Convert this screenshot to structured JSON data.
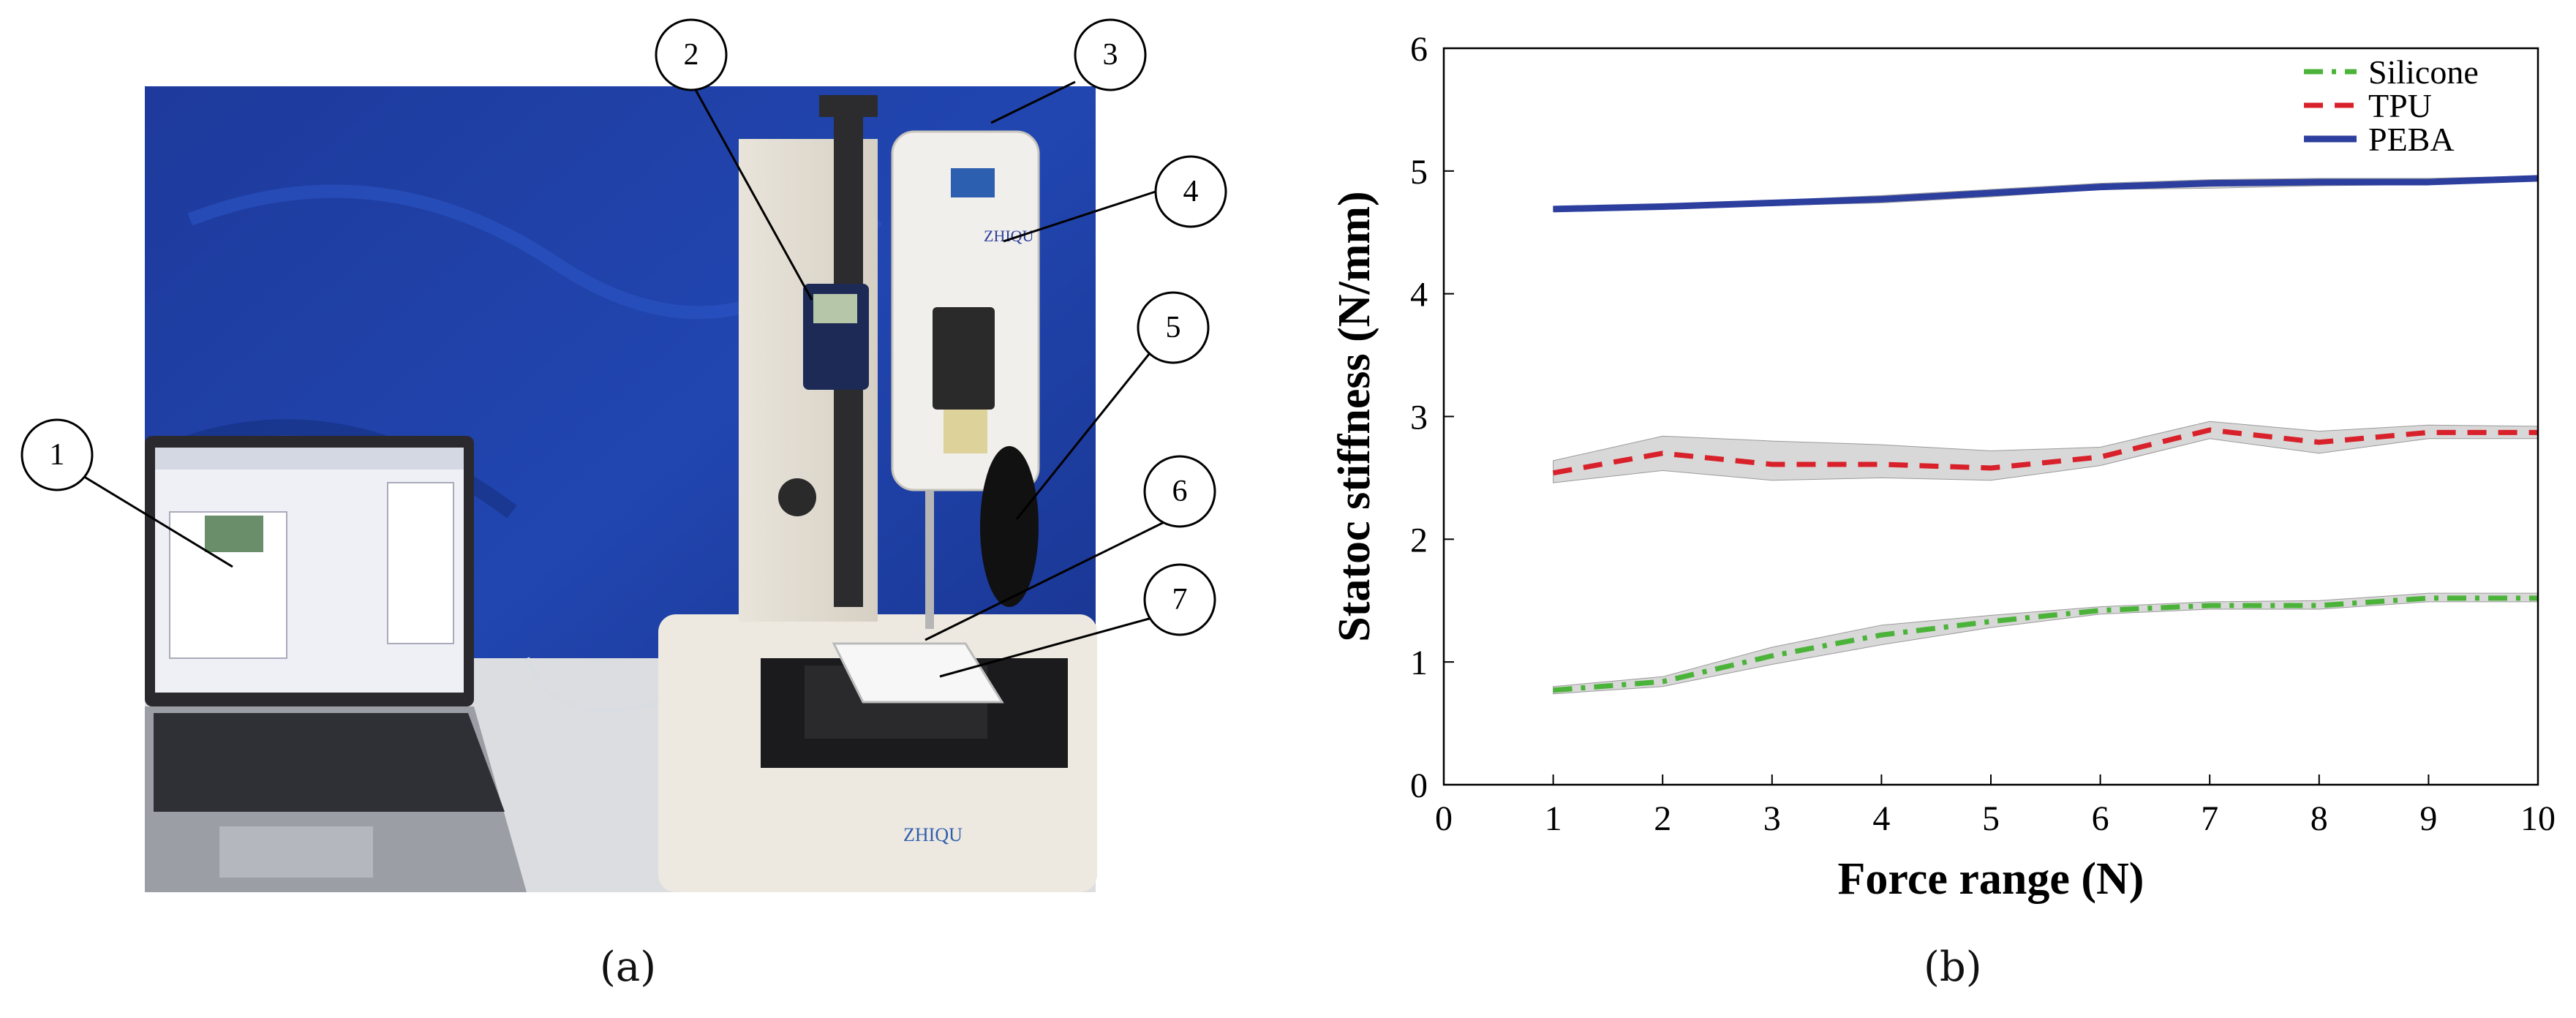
{
  "panel_a": {
    "caption": "(a)",
    "callouts": [
      "1",
      "2",
      "3",
      "4",
      "5",
      "6",
      "7"
    ],
    "brand_text": "ZHIQU",
    "device_text": "ZHIQU"
  },
  "panel_b": {
    "caption": "(b)"
  },
  "colors": {
    "silicone": "#4cb33a",
    "tpu": "#d8212a",
    "peba": "#2d3f9e",
    "band": "#b8b8b8"
  },
  "chart_data": {
    "type": "line",
    "title": "",
    "xlabel": "Force range (N)",
    "ylabel": "Statoc stiffness (N/mm)",
    "xlim": [
      0,
      10
    ],
    "ylim": [
      0,
      6
    ],
    "xticks": [
      "0",
      "1",
      "2",
      "3",
      "4",
      "5",
      "6",
      "7",
      "8",
      "9",
      "10"
    ],
    "yticks": [
      "0",
      "1",
      "2",
      "3",
      "4",
      "5",
      "6"
    ],
    "grid": false,
    "legend_position": "top-right",
    "x": [
      1,
      2,
      3,
      4,
      5,
      6,
      7,
      8,
      9,
      10
    ],
    "series": [
      {
        "name": "Silicone",
        "style": "dash-dot",
        "values": [
          0.77,
          0.84,
          1.05,
          1.22,
          1.33,
          1.42,
          1.46,
          1.46,
          1.52,
          1.52
        ],
        "lower": [
          0.74,
          0.8,
          0.98,
          1.14,
          1.28,
          1.39,
          1.43,
          1.43,
          1.49,
          1.49
        ],
        "upper": [
          0.8,
          0.88,
          1.12,
          1.3,
          1.38,
          1.45,
          1.49,
          1.5,
          1.56,
          1.56
        ]
      },
      {
        "name": "TPU",
        "style": "dashed",
        "values": [
          2.54,
          2.7,
          2.61,
          2.61,
          2.58,
          2.67,
          2.89,
          2.79,
          2.87,
          2.87
        ],
        "lower": [
          2.46,
          2.56,
          2.48,
          2.5,
          2.48,
          2.6,
          2.82,
          2.7,
          2.82,
          2.82
        ],
        "upper": [
          2.64,
          2.84,
          2.8,
          2.77,
          2.72,
          2.75,
          2.96,
          2.88,
          2.93,
          2.92
        ]
      },
      {
        "name": "PEBA",
        "style": "solid",
        "values": [
          4.69,
          4.71,
          4.74,
          4.77,
          4.82,
          4.87,
          4.9,
          4.91,
          4.91,
          4.94
        ],
        "lower": [
          4.67,
          4.69,
          4.72,
          4.74,
          4.79,
          4.85,
          4.86,
          4.88,
          4.89,
          4.92
        ],
        "upper": [
          4.71,
          4.73,
          4.76,
          4.8,
          4.85,
          4.9,
          4.93,
          4.94,
          4.94,
          4.96
        ]
      }
    ]
  }
}
